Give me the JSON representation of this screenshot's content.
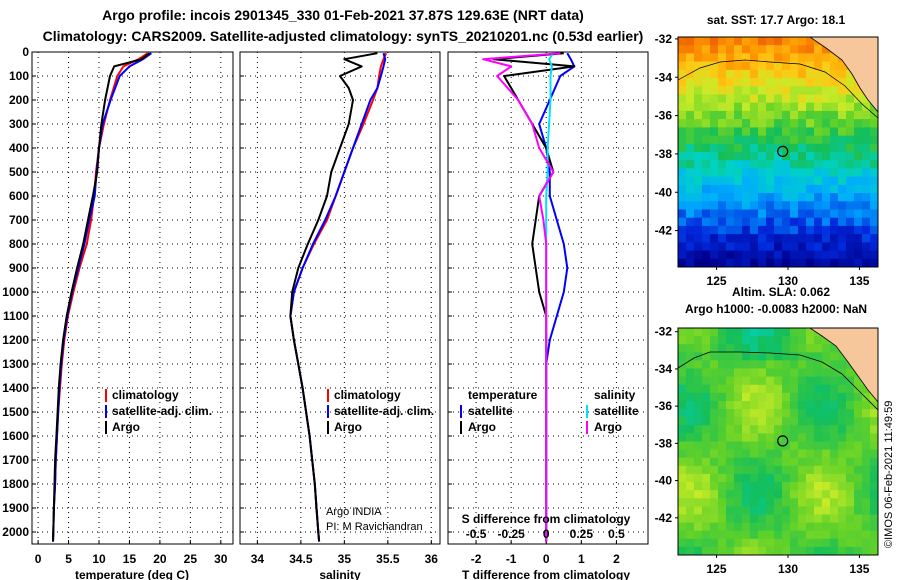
{
  "title": {
    "line1": "Argo profile: incois 2901345_330 01-Feb-2021 37.87S 129.63E (NRT data)",
    "line2": "Climatology: CARS2009. Satellite-adjusted climatology: synTS_20210201.nc (0.53d earlier)"
  },
  "colors": {
    "climatology": "#ff0000",
    "satellite": "#0000ff",
    "argo": "#000000",
    "sat_salinity": "#00e0ff",
    "argo_salinity": "#ff00ff",
    "land": "#f5c79a"
  },
  "depth_axis": {
    "min": 0,
    "max": 2050,
    "ticks": [
      0,
      100,
      200,
      300,
      400,
      500,
      600,
      700,
      800,
      900,
      1000,
      1100,
      1200,
      1300,
      1400,
      1500,
      1600,
      1700,
      1800,
      1900,
      2000
    ],
    "tick_labels": [
      "0",
      "100",
      "200",
      "300",
      "400",
      "500",
      "600",
      "700",
      "800",
      "900",
      "1000",
      "1100",
      "1200",
      "1300",
      "1400",
      "1500",
      "1600",
      "1700",
      "1800",
      "1900",
      "2000"
    ]
  },
  "chart_data": [
    {
      "type": "line",
      "name": "temperature",
      "xlabel": "temperature (deg C)",
      "xlim": [
        -1,
        32
      ],
      "xticks": [
        0,
        5,
        10,
        15,
        20,
        25,
        30
      ],
      "xtick_labels": [
        "0",
        "5",
        "10",
        "15",
        "20",
        "25",
        "30"
      ],
      "y_depth": [
        5,
        30,
        60,
        100,
        200,
        300,
        400,
        500,
        600,
        700,
        800,
        900,
        1000,
        1100,
        1200,
        1300,
        1400,
        1500,
        1600,
        1700,
        1800,
        1900,
        2000,
        2040
      ],
      "series": [
        {
          "name": "climatology",
          "color": "#ff0000",
          "values": [
            18.0,
            16.5,
            14.0,
            13.0,
            11.8,
            10.8,
            10.0,
            9.5,
            9.2,
            8.7,
            8.0,
            6.8,
            5.8,
            4.9,
            4.3,
            3.9,
            3.6,
            3.3,
            3.1,
            2.9,
            2.8,
            2.6,
            2.5,
            2.45
          ]
        },
        {
          "name": "satellite-adj. clim.",
          "color": "#0000ff",
          "values": [
            18.6,
            17.2,
            15.0,
            13.4,
            11.9,
            10.6,
            10.0,
            9.6,
            9.3,
            8.4,
            7.6,
            6.6,
            5.6,
            4.8,
            4.2,
            3.8,
            3.5,
            3.3,
            3.1,
            2.9,
            2.8,
            2.6,
            2.5,
            2.45
          ]
        },
        {
          "name": "Argo",
          "color": "#000000",
          "values": [
            18.3,
            17.0,
            12.5,
            11.8,
            11.0,
            10.4,
            10.0,
            9.7,
            9.0,
            8.2,
            7.4,
            6.4,
            5.5,
            4.7,
            4.1,
            3.7,
            3.4,
            3.2,
            3.0,
            2.8,
            2.7,
            2.6,
            2.5,
            2.45
          ]
        }
      ],
      "legend": {
        "position": "bottom-right",
        "entries": [
          "climatology",
          "satellite-adj. clim.",
          "Argo"
        ]
      }
    },
    {
      "type": "line",
      "name": "salinity",
      "xlabel": "salinity",
      "xlim": [
        33.8,
        36.1
      ],
      "xticks": [
        34,
        34.5,
        35,
        35.5,
        36
      ],
      "xtick_labels": [
        "34",
        "34.5",
        "35",
        "35.5",
        "36"
      ],
      "y_depth": [
        5,
        30,
        60,
        100,
        150,
        200,
        300,
        400,
        500,
        600,
        700,
        800,
        900,
        1000,
        1100,
        1200,
        1300,
        1400,
        1500,
        1600,
        1700,
        1800,
        1900,
        2000,
        2040
      ],
      "series": [
        {
          "name": "climatology",
          "color": "#ff0000",
          "values": [
            35.48,
            35.45,
            35.42,
            35.4,
            35.38,
            35.33,
            35.22,
            35.1,
            35.0,
            34.9,
            34.8,
            34.65,
            34.52,
            34.42,
            34.38,
            34.42,
            34.47,
            34.52,
            34.56,
            34.6,
            34.63,
            34.66,
            34.68,
            34.7,
            34.71
          ]
        },
        {
          "name": "satellite-adj. clim.",
          "color": "#0000ff",
          "values": [
            35.45,
            35.47,
            35.45,
            35.42,
            35.38,
            35.3,
            35.2,
            35.1,
            35.0,
            34.9,
            34.78,
            34.64,
            34.52,
            34.42,
            34.38,
            34.42,
            34.47,
            34.52,
            34.56,
            34.6,
            34.63,
            34.66,
            34.68,
            34.7,
            34.71
          ]
        },
        {
          "name": "Argo",
          "color": "#000000",
          "values": [
            35.38,
            35.0,
            35.2,
            34.95,
            35.05,
            35.1,
            35.05,
            34.95,
            34.85,
            34.8,
            34.7,
            34.58,
            34.47,
            34.4,
            34.38,
            34.42,
            34.47,
            34.52,
            34.56,
            34.6,
            34.63,
            34.66,
            34.68,
            34.7,
            34.71
          ]
        }
      ],
      "legend": {
        "position": "bottom-right",
        "entries": [
          "climatology",
          "satellite-adj. clim.",
          "Argo"
        ]
      },
      "annotations": [
        "Argo INDIA",
        "PI: M Ravichandran"
      ]
    },
    {
      "type": "line",
      "name": "difference from climatology",
      "xlabel": "T difference from climatology",
      "x2label": "S difference from climatology",
      "xlim": [
        -2.8,
        2.9
      ],
      "xticks": [
        -2,
        -1,
        0,
        1,
        2
      ],
      "xtick_labels": [
        "-2",
        "-1",
        "0",
        "1",
        "2"
      ],
      "x2lim": [
        -0.7,
        0.725
      ],
      "x2ticks": [
        -0.5,
        -0.25,
        0,
        0.25,
        0.5
      ],
      "x2tick_labels": [
        "-0.5",
        "-0.25",
        "0",
        "0.25",
        "0.5"
      ],
      "y_depth": [
        5,
        30,
        60,
        100,
        200,
        300,
        400,
        500,
        600,
        700,
        800,
        900,
        1000,
        1100,
        1200,
        1300,
        1400,
        1500,
        1600,
        1700,
        1800,
        1900,
        2000,
        2040
      ],
      "series": [
        {
          "name": "temperature satellite",
          "color": "#0000ff",
          "values": [
            0.6,
            0.7,
            0.8,
            0.4,
            0.1,
            -0.2,
            0.0,
            0.1,
            0.1,
            0.3,
            0.5,
            0.6,
            0.5,
            0.3,
            0.1,
            0.0,
            0.0,
            0.0,
            0.0,
            0.0,
            0.0,
            0.0,
            0.0,
            0.0
          ]
        },
        {
          "name": "temperature Argo",
          "color": "#000000",
          "values": [
            0.5,
            -1.5,
            0.8,
            -1.2,
            -0.8,
            -0.4,
            0.0,
            0.2,
            -0.2,
            -0.3,
            -0.4,
            -0.3,
            -0.2,
            0.0,
            0.0,
            0.0,
            0.0,
            0.0,
            0.0,
            0.0,
            0.0,
            0.0,
            0.0,
            0.0
          ]
        },
        {
          "name": "salinity satellite",
          "color": "#00e0ff",
          "values": [
            0.05,
            0.02,
            0.04,
            0.03,
            0.03,
            0.02,
            0.01,
            0.01,
            0.0,
            0.0,
            0.0,
            0.0,
            0.0,
            0.0,
            0.0,
            0.0,
            0.0,
            0.0,
            0.0,
            0.0,
            0.0,
            0.0,
            0.0,
            0.0
          ]
        },
        {
          "name": "salinity Argo",
          "color": "#ff00ff",
          "values": [
            0.1,
            -0.45,
            -0.25,
            -0.35,
            -0.2,
            -0.1,
            -0.05,
            0.05,
            -0.05,
            -0.02,
            0.0,
            0.0,
            0.0,
            0.0,
            0.0,
            0.0,
            0.0,
            0.0,
            0.0,
            0.0,
            0.0,
            0.0,
            0.0,
            0.0
          ]
        }
      ],
      "legend": {
        "position": "bottom",
        "temperature_title": "temperature",
        "salinity_title": "salinity",
        "temperature_entries": [
          "satellite",
          "Argo"
        ],
        "salinity_entries": [
          "satellite",
          "Argo"
        ]
      }
    }
  ],
  "sst_map": {
    "title": "sat. SST: 17.7 Argo: 18.1",
    "lat_labels": [
      "-32",
      "-34",
      "-36",
      "-38",
      "-40",
      "-42"
    ],
    "lon_labels": [
      "125",
      "130",
      "135"
    ],
    "lat_ticks": [
      -32,
      -34,
      -36,
      -38,
      -40,
      -42
    ],
    "lon_ticks": [
      125,
      130,
      135
    ],
    "float_lon": 129.63,
    "float_lat": -37.87
  },
  "sla_map": {
    "title1": "Altim. SLA: 0.062",
    "title2": "Argo h1000: -0.0083 h2000: NaN",
    "lat_labels": [
      "-32",
      "-34",
      "-36",
      "-38",
      "-40",
      "-42"
    ],
    "lon_labels": [
      "125",
      "130",
      "135"
    ],
    "lat_ticks": [
      -32,
      -34,
      -36,
      -38,
      -40,
      -42
    ],
    "lon_ticks": [
      125,
      130,
      135
    ],
    "float_lon": 129.63,
    "float_lat": -37.87
  },
  "credit": "©IMOS 06-Feb-2021 11:49:59"
}
